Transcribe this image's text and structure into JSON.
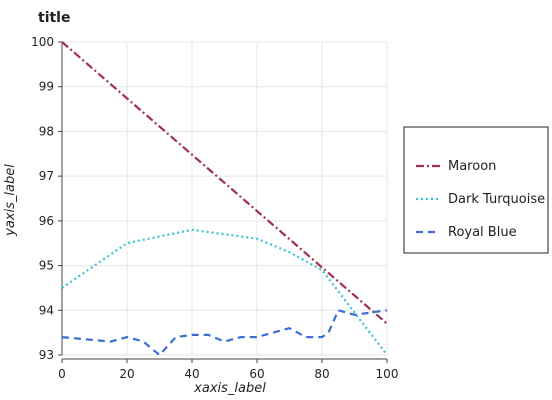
{
  "chart_data": {
    "type": "line",
    "title": "title",
    "xlabel": "xaxis_label",
    "ylabel": "yaxis_label",
    "xlim": [
      0,
      100
    ],
    "ylim": [
      93,
      100
    ],
    "xticks": [
      "0",
      "20",
      "40",
      "60",
      "80",
      "100"
    ],
    "yticks": [
      "93",
      "94",
      "95",
      "96",
      "97",
      "98",
      "99",
      "100"
    ],
    "grid": true,
    "legend_position": "right",
    "series": [
      {
        "name": "Maroon",
        "color": "#a0304f",
        "dash": "8,3,2,3",
        "x": [
          0,
          100
        ],
        "y": [
          100,
          93.7
        ]
      },
      {
        "name": "Dark Turquoise",
        "color": "#35c4d6",
        "dash": "2,3",
        "x": [
          0,
          20,
          40,
          60,
          70,
          80,
          100
        ],
        "y": [
          94.5,
          95.5,
          95.8,
          95.6,
          95.3,
          94.9,
          93.0
        ]
      },
      {
        "name": "Royal Blue",
        "color": "#3b6fd0",
        "dash": "7,5",
        "x": [
          0,
          15,
          20,
          25,
          30,
          35,
          40,
          45,
          50,
          55,
          60,
          65,
          70,
          75,
          80,
          82,
          85,
          90,
          100
        ],
        "y": [
          93.4,
          93.3,
          93.4,
          93.3,
          93.0,
          93.4,
          93.45,
          93.45,
          93.3,
          93.4,
          93.4,
          93.5,
          93.6,
          93.4,
          93.4,
          93.5,
          94.0,
          93.9,
          94.0
        ]
      }
    ]
  }
}
